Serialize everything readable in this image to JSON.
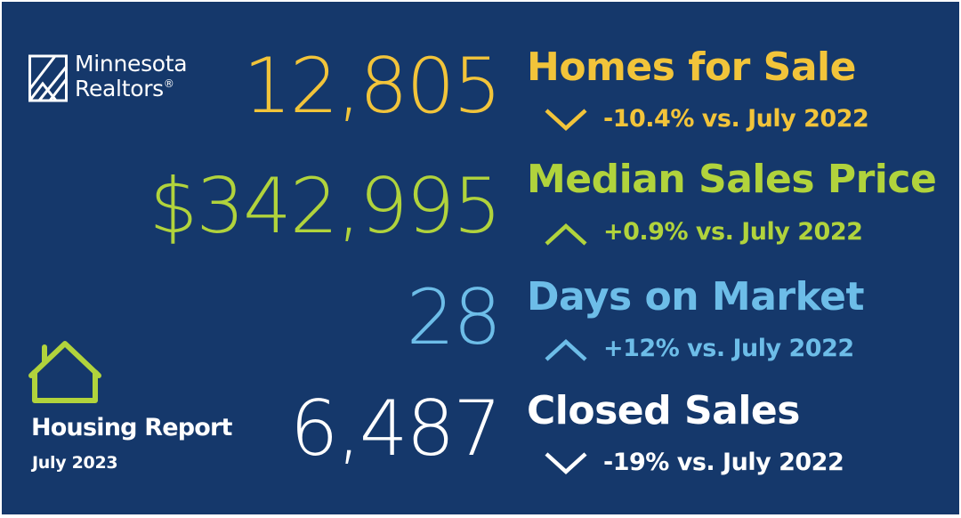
{
  "brand": {
    "line1": "Minnesota",
    "line2": "Realtors",
    "reg_mark": "®"
  },
  "report": {
    "title": "Housing Report",
    "date": "July 2023"
  },
  "colors": {
    "background": "#15386b",
    "yellow": "#f2c43a",
    "green": "#b1d33c",
    "blue": "#6dbde8",
    "white": "#ffffff",
    "house_icon": "#b1d33c"
  },
  "stats": [
    {
      "value": "12,805",
      "label": "Homes for Sale",
      "change": "-10.4% vs. July 2022",
      "direction": "down",
      "color": "#f2c43a"
    },
    {
      "value": "$342,995",
      "label": "Median Sales Price",
      "change": "+0.9% vs. July 2022",
      "direction": "up",
      "color": "#b1d33c"
    },
    {
      "value": "28",
      "label": "Days on Market",
      "change": "+12% vs. July 2022",
      "direction": "up",
      "color": "#6dbde8"
    },
    {
      "value": "6,487",
      "label": "Closed Sales",
      "change": "-19% vs. July 2022",
      "direction": "down",
      "color": "#ffffff"
    }
  ],
  "icons": {
    "logo": "minnesota-realtors-logo-icon",
    "house": "house-icon",
    "up": "chevron-up-icon",
    "down": "chevron-down-icon"
  }
}
